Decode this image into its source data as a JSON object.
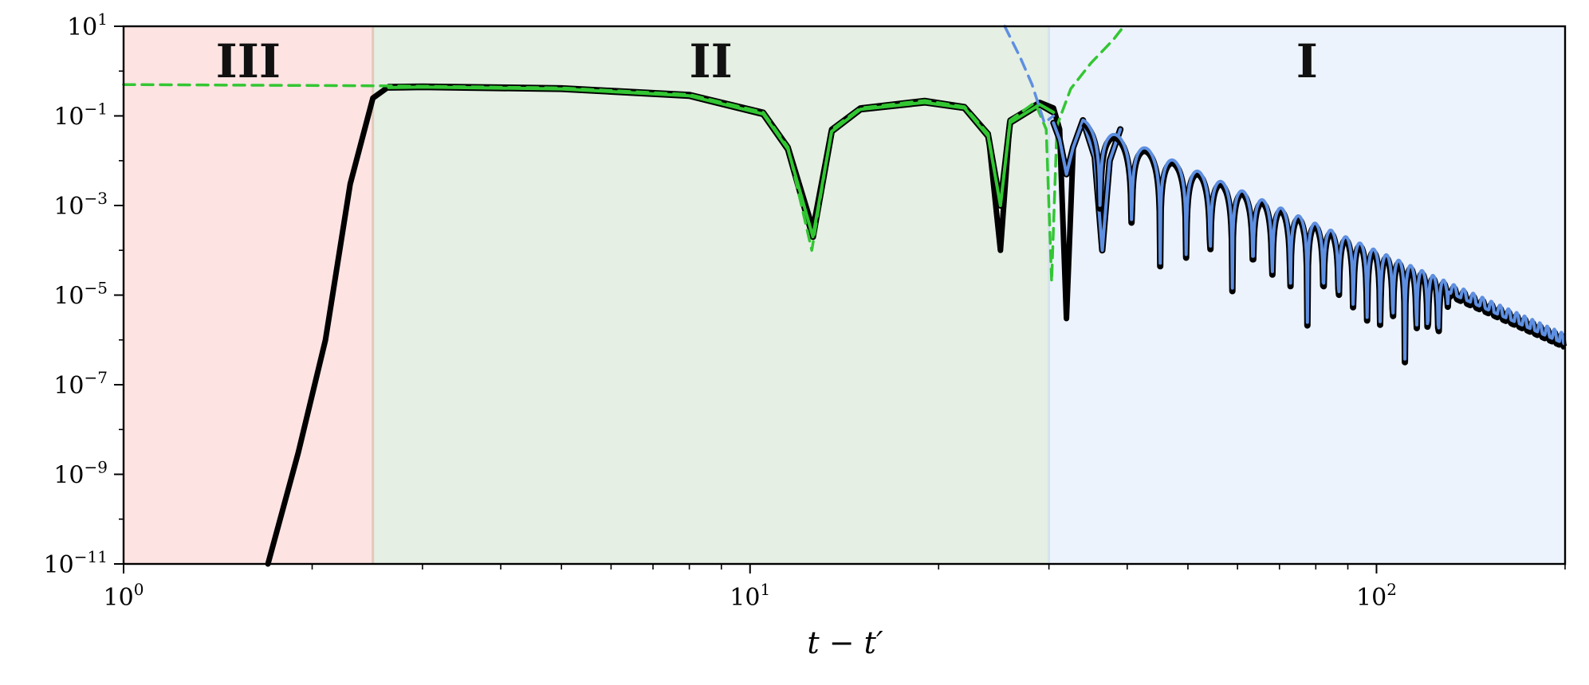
{
  "chart_data": {
    "type": "line",
    "title": "",
    "xlabel": "t − t′",
    "ylabel": "",
    "xscale": "log",
    "yscale": "log",
    "xlim": [
      1,
      200
    ],
    "ylim": [
      1e-11,
      10
    ],
    "grid": false,
    "legend": "none",
    "x_ticks": [
      {
        "value": 1,
        "base": "10",
        "exp": "0"
      },
      {
        "value": 10,
        "base": "10",
        "exp": "1"
      },
      {
        "value": 100,
        "base": "10",
        "exp": "2"
      }
    ],
    "y_ticks": [
      {
        "value": 10,
        "base": "10",
        "exp": "1"
      },
      {
        "value": 0.1,
        "base": "10",
        "exp": "−1"
      },
      {
        "value": 0.001,
        "base": "10",
        "exp": "−3"
      },
      {
        "value": 1e-05,
        "base": "10",
        "exp": "−5"
      },
      {
        "value": 1e-07,
        "base": "10",
        "exp": "−7"
      },
      {
        "value": 1e-09,
        "base": "10",
        "exp": "−9"
      },
      {
        "value": 1e-11,
        "base": "10",
        "exp": "−11"
      }
    ],
    "regions": [
      {
        "label": "III",
        "x_start": 1,
        "x_end": 2.5,
        "color": "#fde3e2"
      },
      {
        "label": "II",
        "x_start": 2.5,
        "x_end": 30,
        "color": "#e5efe3"
      },
      {
        "label": "I",
        "x_start": 30,
        "x_end": 200,
        "color": "#edf3fc"
      }
    ],
    "series": [
      {
        "style": "black-thick",
        "color": "#000000",
        "points": [
          [
            1.7,
            1e-11
          ],
          [
            1.9,
            3e-09
          ],
          [
            2.1,
            1e-06
          ],
          [
            2.3,
            0.003
          ],
          [
            2.5,
            0.25
          ],
          [
            2.65,
            0.45
          ],
          [
            3,
            0.46
          ],
          [
            5,
            0.42
          ],
          [
            8,
            0.3
          ],
          [
            10.5,
            0.12
          ],
          [
            11.5,
            0.02
          ],
          [
            12.6,
            0.0003
          ],
          [
            13.5,
            0.05
          ],
          [
            15,
            0.15
          ],
          [
            19,
            0.22
          ],
          [
            22,
            0.16
          ],
          [
            24,
            0.04
          ],
          [
            25.1,
            0.0001
          ],
          [
            26,
            0.08
          ],
          [
            29,
            0.2
          ],
          [
            30.5,
            0.15
          ],
          [
            31.2,
            0.05
          ],
          [
            32,
            3e-06
          ],
          [
            32.8,
            0.02
          ],
          [
            34,
            0.08
          ]
        ]
      },
      {
        "style": "green-solid",
        "color": "#33c633",
        "points": [
          [
            2.65,
            0.43
          ],
          [
            3,
            0.44
          ],
          [
            5,
            0.4
          ],
          [
            8,
            0.28
          ],
          [
            10.5,
            0.11
          ],
          [
            11.5,
            0.018
          ],
          [
            12.6,
            0.0002
          ],
          [
            13.5,
            0.045
          ],
          [
            15,
            0.14
          ],
          [
            19,
            0.2
          ],
          [
            22,
            0.15
          ],
          [
            24,
            0.035
          ],
          [
            25.1,
            0.001
          ],
          [
            26,
            0.07
          ],
          [
            29,
            0.18
          ],
          [
            30.5,
            0.12
          ]
        ]
      },
      {
        "style": "green-dashed",
        "color": "#33c633",
        "points": [
          [
            1,
            0.5
          ],
          [
            2.5,
            0.47
          ],
          [
            3,
            0.46
          ],
          [
            5,
            0.42
          ],
          [
            8,
            0.3
          ],
          [
            10.5,
            0.12
          ],
          [
            11.5,
            0.02
          ],
          [
            12.55,
            0.0001
          ],
          [
            13.5,
            0.05
          ],
          [
            15,
            0.15
          ],
          [
            19,
            0.22
          ],
          [
            22,
            0.16
          ],
          [
            24,
            0.04
          ],
          [
            25.1,
            0.001
          ],
          [
            26,
            0.08
          ],
          [
            28.5,
            0.2
          ],
          [
            29.7,
            0.05
          ],
          [
            30.3,
            2e-05
          ],
          [
            30.9,
            0.06
          ],
          [
            32.5,
            0.4
          ],
          [
            35,
            1.5
          ],
          [
            38,
            5
          ],
          [
            39.5,
            10
          ]
        ]
      },
      {
        "style": "blue-dashed",
        "color": "#5e8fe1",
        "points": [
          [
            25.5,
            10
          ],
          [
            27,
            2
          ],
          [
            28.2,
            0.5
          ],
          [
            29.5,
            0.07
          ],
          [
            30.5,
            0.1
          ]
        ]
      },
      {
        "style": "blue-solid",
        "color": "#5e8fe1",
        "points": [
          [
            30.5,
            0.07
          ],
          [
            31.2,
            0.03
          ],
          [
            32,
            0.005
          ],
          [
            32.8,
            0.02
          ],
          [
            34,
            0.08
          ],
          [
            35.5,
            0.012
          ],
          [
            36.5,
            0.0001
          ],
          [
            37.5,
            0.01
          ],
          [
            39,
            0.05
          ]
        ]
      }
    ]
  }
}
